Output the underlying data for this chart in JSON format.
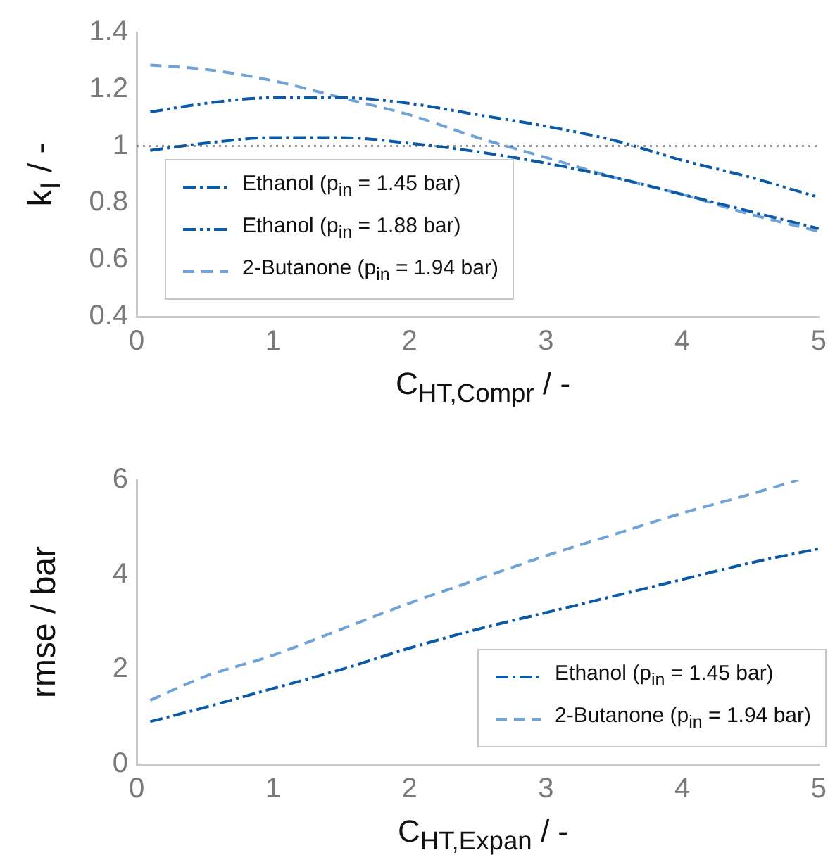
{
  "chart_data": [
    {
      "type": "line",
      "xlabel": "C$_{HT,Compr}$ / -",
      "ylabel": "k$_{I}$ / -",
      "xlim": [
        0,
        5
      ],
      "xticks": [
        0,
        1,
        2,
        3,
        4,
        5
      ],
      "ylim": [
        0.4,
        1.4
      ],
      "yticks": [
        0.4,
        0.6,
        0.8,
        1,
        1.2,
        1.4
      ],
      "grid": false,
      "legend": "bottom left",
      "marker": "none",
      "x": [
        0.1,
        0.5,
        1,
        1.5,
        2,
        2.5,
        3,
        3.5,
        4,
        4.5,
        5
      ],
      "series": [
        {
          "name": "Ethanol (p$_{in}$ = 1.45 bar)",
          "color": "#0a5aa8",
          "line_style": "dashdot",
          "values": [
            0.985,
            1.01,
            1.03,
            1.03,
            1.01,
            0.98,
            0.94,
            0.89,
            0.83,
            0.77,
            0.71
          ]
        },
        {
          "name": "Ethanol (p$_{in}$ = 1.88 bar)",
          "color": "#0a5aa8",
          "line_style": "dashdotdot",
          "values": [
            1.12,
            1.15,
            1.17,
            1.17,
            1.15,
            1.11,
            1.07,
            1.02,
            0.95,
            0.89,
            0.82
          ]
        },
        {
          "name": "2-Butanone (p$_{in}$ = 1.94 bar)",
          "color": "#6fa3d8",
          "line_style": "dashed",
          "values": [
            1.285,
            1.27,
            1.23,
            1.17,
            1.11,
            1.03,
            0.96,
            0.89,
            0.83,
            0.76,
            0.7
          ]
        }
      ],
      "ref_lines": [
        {
          "axis": "y",
          "value": 1,
          "color": "#333333",
          "line_style": "dotted"
        }
      ]
    },
    {
      "type": "line",
      "xlabel": "C$_{HT,Expan}$ / -",
      "ylabel": "rmse / bar",
      "xlim": [
        0,
        5
      ],
      "xticks": [
        0,
        1,
        2,
        3,
        4,
        5
      ],
      "ylim": [
        0,
        6
      ],
      "yticks": [
        0,
        2,
        4,
        6
      ],
      "grid": false,
      "legend": "bottom right",
      "marker": "none",
      "series": [
        {
          "name": "Ethanol (p$_{in}$ = 1.45 bar)",
          "color": "#0a5aa8",
          "line_style": "dashdot",
          "x": [
            0.1,
            0.5,
            1,
            1.5,
            2,
            2.5,
            3,
            3.5,
            4,
            4.5,
            5
          ],
          "values": [
            0.9,
            1.2,
            1.6,
            2.0,
            2.45,
            2.85,
            3.2,
            3.55,
            3.9,
            4.25,
            4.55
          ]
        },
        {
          "name": "2-Butanone (p$_{in}$ = 1.94 bar)",
          "color": "#6fa3d8",
          "line_style": "dashed",
          "x": [
            0.1,
            0.5,
            1,
            1.5,
            2,
            2.5,
            3,
            3.5,
            4,
            4.5,
            4.85
          ],
          "values": [
            1.35,
            1.85,
            2.3,
            2.85,
            3.4,
            3.9,
            4.4,
            4.85,
            5.3,
            5.7,
            6.0
          ]
        }
      ]
    }
  ]
}
